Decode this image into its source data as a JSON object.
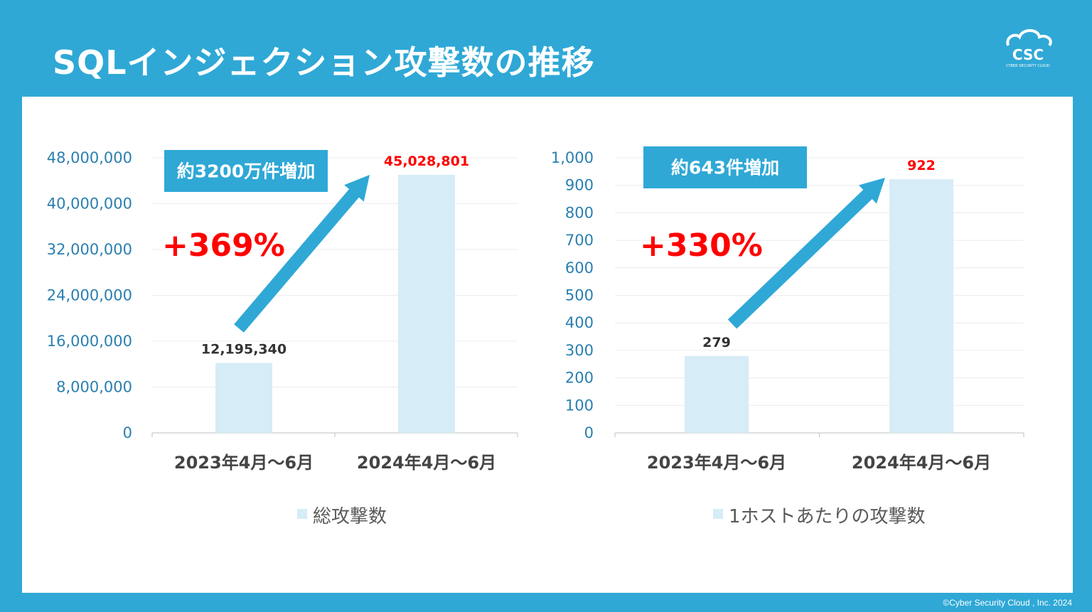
{
  "title": "SQLインジェクション攻撃数の推移",
  "logo": {
    "text": "CSC",
    "subtext": "CYBER SECURITY CLOUD"
  },
  "copyright": "©Cyber Security Cloud , Inc. 2024",
  "colors": {
    "frame": "#2fa8d6",
    "bar": "#d6ecf7",
    "arrow": "#2fa8d6",
    "callout_bg": "#2fa8d6",
    "highlight": "#ff0000",
    "grid": "#ececec"
  },
  "chart_data": [
    {
      "type": "bar",
      "categories": [
        "2023年4月～6月",
        "2024年4月～6月"
      ],
      "series": [
        {
          "name": "総攻撃数",
          "values": [
            12195340,
            45028801
          ]
        }
      ],
      "data_labels": [
        "12,195,340",
        "45,028,801"
      ],
      "yticks": [
        "0",
        "8,000,000",
        "16,000,000",
        "24,000,000",
        "32,000,000",
        "40,000,000",
        "48,000,000"
      ],
      "ylim": [
        0,
        48000000
      ],
      "grid": true,
      "legend_position": "bottom",
      "callout": "約3200万件増加",
      "growth": "+369%"
    },
    {
      "type": "bar",
      "categories": [
        "2023年4月～6月",
        "2024年4月～6月"
      ],
      "series": [
        {
          "name": "1ホストあたりの攻撃数",
          "values": [
            279,
            922
          ]
        }
      ],
      "data_labels": [
        "279",
        "922"
      ],
      "yticks": [
        "0",
        "100",
        "200",
        "300",
        "400",
        "500",
        "600",
        "700",
        "800",
        "900",
        "1,000"
      ],
      "ylim": [
        0,
        1000
      ],
      "grid": true,
      "legend_position": "bottom",
      "callout": "約643件増加",
      "growth": "+330%"
    }
  ]
}
